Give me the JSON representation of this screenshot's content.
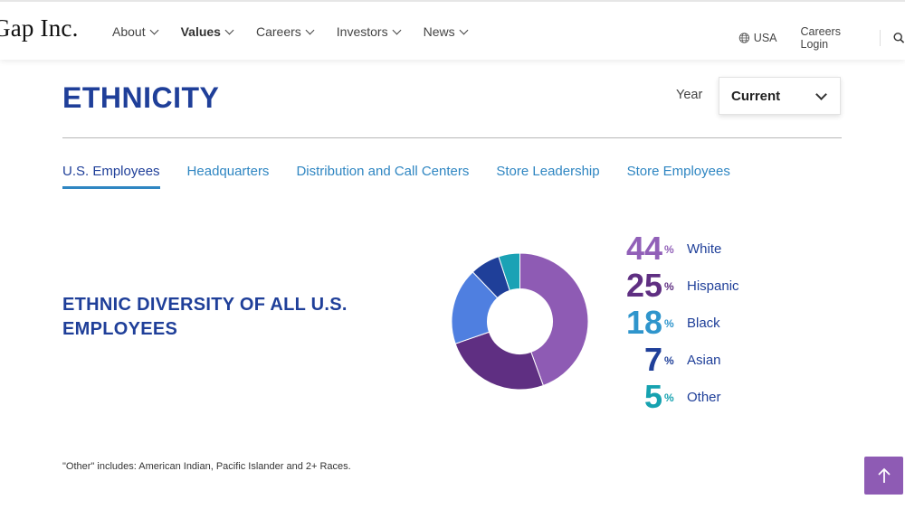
{
  "header": {
    "logo": "Gap Inc.",
    "nav": [
      {
        "label": "About",
        "bold": false
      },
      {
        "label": "Values",
        "bold": true
      },
      {
        "label": "Careers",
        "bold": false
      },
      {
        "label": "Investors",
        "bold": false
      },
      {
        "label": "News",
        "bold": false
      }
    ],
    "region": "USA",
    "careers_login": "Careers Login",
    "icons": [
      "globe-icon",
      "search-icon",
      "chevron-down-icon"
    ]
  },
  "section": {
    "title": "ETHNICITY",
    "year_label": "Year",
    "year_value": "Current",
    "tabs": [
      "U.S. Employees",
      "Headquarters",
      "Distribution and Call Centers",
      "Store Leadership",
      "Store Employees"
    ],
    "active_tab": "U.S. Employees",
    "chart_heading": "ETHNIC DIVERSITY OF ALL U.S. EMPLOYEES",
    "footnote": "\"Other\" includes: American Indian, Pacific Islander and 2+ Races."
  },
  "chart_data": {
    "type": "pie",
    "title": "ETHNIC DIVERSITY OF ALL U.S. EMPLOYEES",
    "donut": true,
    "unit": "%",
    "categories": [
      "White",
      "Hispanic",
      "Black",
      "Asian",
      "Other"
    ],
    "values": [
      44,
      25,
      18,
      7,
      5
    ],
    "colors": [
      "#8e5bb4",
      "#5f2f82",
      "#4f7fe0",
      "#1f3f99",
      "#1aa2b5"
    ],
    "label_colors": [
      "#9160b8",
      "#5f2f82",
      "#2f95cc",
      "#1f3f99",
      "#16a2b0"
    ]
  },
  "back_to_top": {
    "icon": "arrow-up-icon",
    "color": "#8e5bb4"
  }
}
